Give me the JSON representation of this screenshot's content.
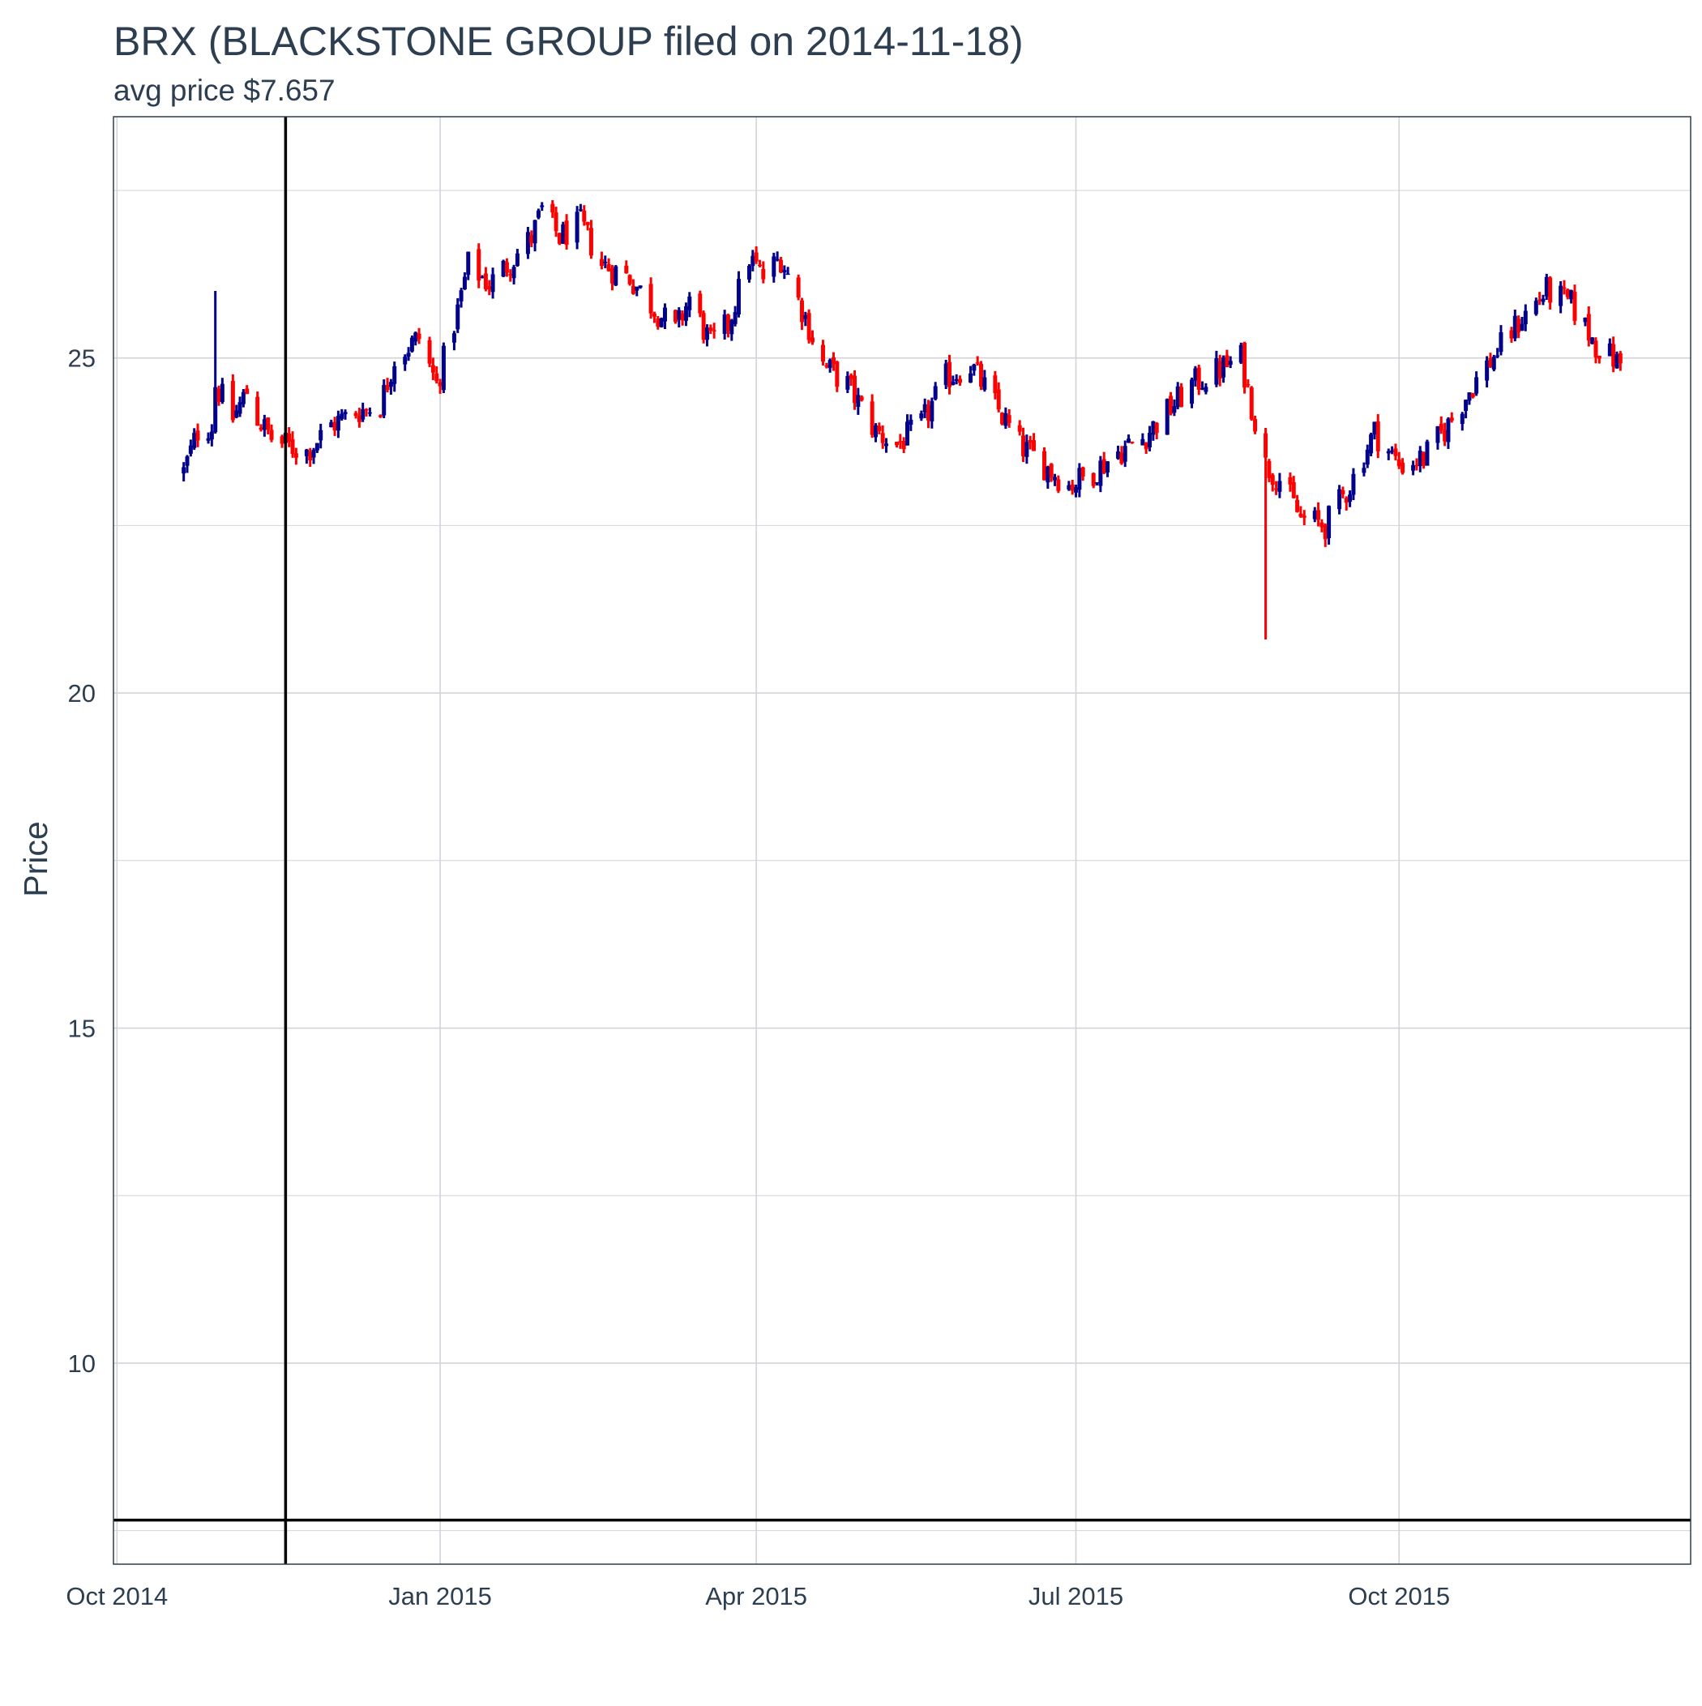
{
  "chart_data": {
    "type": "candlestick",
    "title": "BRX (BLACKSTONE GROUP filed on 2014-11-18)",
    "subtitle": "avg price $7.657",
    "xlabel": "",
    "ylabel": "Price",
    "x_ticks": [
      "Oct 2014",
      "Jan 2015",
      "Apr 2015",
      "Jul 2015",
      "Oct 2015"
    ],
    "y_ticks": [
      10,
      15,
      20,
      25
    ],
    "ylim": [
      7.0,
      28.6
    ],
    "xlim": [
      "2014-09-30",
      "2015-12-23"
    ],
    "grid": true,
    "colors": {
      "up": "#00008b",
      "down": "#ff0000",
      "reference": "#000000",
      "grid": "#d3d3d9",
      "text": "#2c3e50",
      "border": "#2c3e50"
    },
    "reference_lines": {
      "vertical_date": "2014-11-18",
      "horizontal_price": 7.657
    },
    "keypoints": [
      [
        "2014-10-20",
        23.3
      ],
      [
        "2014-10-24",
        23.9
      ],
      [
        "2014-10-28",
        24.0
      ],
      [
        "2014-10-29",
        24.6
      ],
      [
        "2014-11-03",
        24.1
      ],
      [
        "2014-11-07",
        24.5
      ],
      [
        "2014-11-10",
        24.1
      ],
      [
        "2014-11-14",
        23.8
      ],
      [
        "2014-11-18",
        23.7
      ],
      [
        "2014-11-24",
        23.6
      ],
      [
        "2014-12-01",
        24.0
      ],
      [
        "2014-12-08",
        24.2
      ],
      [
        "2014-12-15",
        24.3
      ],
      [
        "2014-12-19",
        25.0
      ],
      [
        "2014-12-26",
        25.3
      ],
      [
        "2014-12-31",
        24.6
      ],
      [
        "2015-01-06",
        25.7
      ],
      [
        "2015-01-09",
        26.4
      ],
      [
        "2015-01-15",
        26.1
      ],
      [
        "2015-01-22",
        26.5
      ],
      [
        "2015-01-27",
        26.8
      ],
      [
        "2015-01-30",
        27.2
      ],
      [
        "2015-02-04",
        26.8
      ],
      [
        "2015-02-10",
        27.0
      ],
      [
        "2015-02-16",
        26.4
      ],
      [
        "2015-02-24",
        26.2
      ],
      [
        "2015-03-02",
        25.8
      ],
      [
        "2015-03-09",
        25.4
      ],
      [
        "2015-03-13",
        25.9
      ],
      [
        "2015-03-19",
        25.2
      ],
      [
        "2015-03-24",
        25.5
      ],
      [
        "2015-03-30",
        26.5
      ],
      [
        "2015-04-03",
        26.2
      ],
      [
        "2015-04-08",
        26.5
      ],
      [
        "2015-04-15",
        25.6
      ],
      [
        "2015-04-20",
        24.9
      ],
      [
        "2015-04-27",
        24.6
      ],
      [
        "2015-05-05",
        23.9
      ],
      [
        "2015-05-11",
        23.7
      ],
      [
        "2015-05-18",
        24.0
      ],
      [
        "2015-05-25",
        24.7
      ],
      [
        "2015-06-01",
        24.9
      ],
      [
        "2015-06-08",
        24.3
      ],
      [
        "2015-06-15",
        23.7
      ],
      [
        "2015-06-22",
        23.4
      ],
      [
        "2015-06-29",
        23.1
      ],
      [
        "2015-07-06",
        23.3
      ],
      [
        "2015-07-13",
        23.6
      ],
      [
        "2015-07-20",
        23.8
      ],
      [
        "2015-07-27",
        24.2
      ],
      [
        "2015-08-03",
        24.6
      ],
      [
        "2015-08-10",
        24.8
      ],
      [
        "2015-08-17",
        25.0
      ],
      [
        "2015-08-20",
        24.3
      ],
      [
        "2015-08-24",
        23.4
      ],
      [
        "2015-08-28",
        23.2
      ],
      [
        "2015-09-03",
        22.6
      ],
      [
        "2015-09-10",
        22.5
      ],
      [
        "2015-09-17",
        23.1
      ],
      [
        "2015-09-24",
        23.9
      ],
      [
        "2015-10-01",
        23.4
      ],
      [
        "2015-10-08",
        23.5
      ],
      [
        "2015-10-15",
        24.0
      ],
      [
        "2015-10-22",
        24.6
      ],
      [
        "2015-10-29",
        25.1
      ],
      [
        "2015-11-05",
        25.6
      ],
      [
        "2015-11-12",
        26.0
      ],
      [
        "2015-11-19",
        25.8
      ],
      [
        "2015-11-26",
        25.2
      ],
      [
        "2015-12-03",
        24.9
      ]
    ],
    "events": [
      {
        "date": "2014-10-29",
        "high": 26.0
      },
      {
        "date": "2015-08-24",
        "low": 20.8
      }
    ]
  }
}
